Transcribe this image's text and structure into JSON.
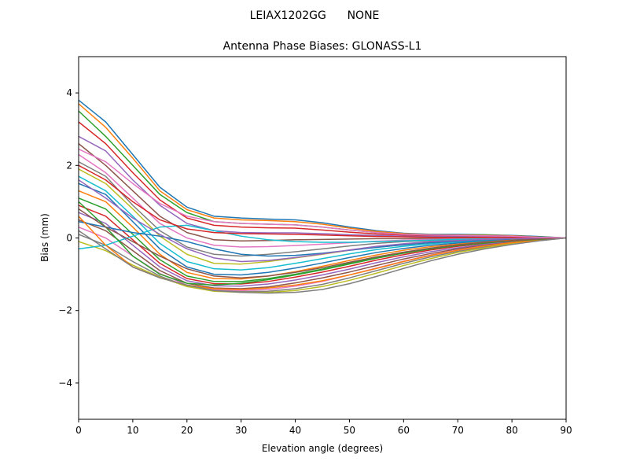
{
  "suptitle": "LEIAX1202GG      NONE",
  "chart_data": {
    "type": "line",
    "title": "Antenna Phase Biases: GLONASS-L1",
    "xlabel": "Elevation angle (degrees)",
    "ylabel": "Bias (mm)",
    "xlim": [
      0,
      90
    ],
    "ylim": [
      -5,
      5
    ],
    "xticks": [
      0,
      10,
      20,
      30,
      40,
      50,
      60,
      70,
      80,
      90
    ],
    "yticks": [
      -4,
      -2,
      0,
      2,
      4
    ],
    "ytick_labels": [
      "−4",
      "−2",
      "0",
      "2",
      "4"
    ],
    "grid": false,
    "legend": "none",
    "colors": [
      "#1f77b4",
      "#ff7f0e",
      "#2ca02c",
      "#d62728",
      "#9467bd",
      "#8c564b",
      "#e377c2",
      "#7f7f7f",
      "#bcbd22",
      "#17becf"
    ],
    "x": [
      0,
      5,
      10,
      15,
      20,
      25,
      30,
      35,
      40,
      45,
      50,
      55,
      60,
      65,
      70,
      75,
      80,
      85,
      90
    ],
    "series": [
      {
        "values": [
          3.8,
          3.2,
          2.3,
          1.4,
          0.85,
          0.6,
          0.55,
          0.52,
          0.5,
          0.42,
          0.3,
          0.2,
          0.13,
          0.1,
          0.1,
          0.09,
          0.07,
          0.04,
          0.0
        ]
      },
      {
        "values": [
          3.7,
          3.05,
          2.2,
          1.3,
          0.78,
          0.55,
          0.5,
          0.48,
          0.45,
          0.38,
          0.27,
          0.18,
          0.12,
          0.09,
          0.08,
          0.08,
          0.06,
          0.03,
          0.0
        ]
      },
      {
        "values": [
          3.5,
          2.8,
          2.0,
          1.2,
          0.7,
          0.45,
          0.4,
          0.38,
          0.36,
          0.3,
          0.22,
          0.15,
          0.1,
          0.08,
          0.07,
          0.07,
          0.05,
          0.03,
          0.0
        ]
      },
      {
        "values": [
          3.2,
          2.6,
          1.8,
          1.05,
          0.55,
          0.35,
          0.3,
          0.28,
          0.27,
          0.22,
          0.16,
          0.11,
          0.08,
          0.06,
          0.06,
          0.06,
          0.05,
          0.02,
          0.0
        ]
      },
      {
        "values": [
          2.8,
          2.4,
          1.6,
          0.9,
          0.4,
          0.2,
          0.15,
          0.14,
          0.14,
          0.12,
          0.09,
          0.07,
          0.05,
          0.04,
          0.04,
          0.04,
          0.04,
          0.02,
          0.0
        ]
      },
      {
        "values": [
          2.6,
          2.0,
          1.3,
          0.6,
          0.15,
          -0.05,
          -0.08,
          -0.07,
          -0.05,
          -0.04,
          -0.03,
          -0.02,
          -0.02,
          -0.01,
          -0.01,
          0.0,
          0.01,
          0.01,
          0.0
        ]
      },
      {
        "values": [
          2.3,
          1.8,
          1.1,
          0.4,
          0.0,
          -0.2,
          -0.25,
          -0.24,
          -0.21,
          -0.17,
          -0.13,
          -0.09,
          -0.06,
          -0.04,
          -0.03,
          -0.02,
          -0.01,
          0.0,
          0.0
        ]
      },
      {
        "values": [
          2.1,
          1.7,
          0.9,
          0.2,
          -0.25,
          -0.45,
          -0.5,
          -0.45,
          -0.38,
          -0.3,
          -0.22,
          -0.15,
          -0.1,
          -0.07,
          -0.05,
          -0.03,
          -0.02,
          -0.01,
          0.0
        ]
      },
      {
        "values": [
          1.9,
          1.5,
          0.8,
          0.05,
          -0.45,
          -0.7,
          -0.72,
          -0.65,
          -0.55,
          -0.45,
          -0.34,
          -0.24,
          -0.17,
          -0.12,
          -0.08,
          -0.05,
          -0.03,
          -0.01,
          0.0
        ]
      },
      {
        "values": [
          1.7,
          1.3,
          0.6,
          -0.15,
          -0.65,
          -0.85,
          -0.88,
          -0.82,
          -0.7,
          -0.57,
          -0.44,
          -0.32,
          -0.23,
          -0.16,
          -0.11,
          -0.07,
          -0.04,
          -0.02,
          0.0
        ]
      },
      {
        "values": [
          1.5,
          1.2,
          0.45,
          -0.3,
          -0.8,
          -1.0,
          -1.02,
          -0.95,
          -0.83,
          -0.69,
          -0.54,
          -0.4,
          -0.29,
          -0.2,
          -0.14,
          -0.09,
          -0.05,
          -0.02,
          0.0
        ]
      },
      {
        "values": [
          1.3,
          1.0,
          0.3,
          -0.45,
          -0.95,
          -1.12,
          -1.13,
          -1.05,
          -0.93,
          -0.78,
          -0.62,
          -0.47,
          -0.34,
          -0.24,
          -0.17,
          -0.11,
          -0.06,
          -0.03,
          0.0
        ]
      },
      {
        "values": [
          1.1,
          0.8,
          0.1,
          -0.6,
          -1.05,
          -1.2,
          -1.2,
          -1.12,
          -1.0,
          -0.86,
          -0.7,
          -0.54,
          -0.4,
          -0.29,
          -0.2,
          -0.13,
          -0.08,
          -0.04,
          0.0
        ]
      },
      {
        "values": [
          0.9,
          0.6,
          -0.05,
          -0.7,
          -1.12,
          -1.26,
          -1.27,
          -1.2,
          -1.08,
          -0.94,
          -0.78,
          -0.61,
          -0.46,
          -0.33,
          -0.23,
          -0.15,
          -0.09,
          -0.04,
          0.0
        ]
      },
      {
        "values": [
          0.7,
          0.4,
          -0.2,
          -0.8,
          -1.18,
          -1.32,
          -1.33,
          -1.27,
          -1.16,
          -1.02,
          -0.86,
          -0.68,
          -0.52,
          -0.38,
          -0.27,
          -0.18,
          -0.1,
          -0.05,
          0.0
        ]
      },
      {
        "values": [
          0.5,
          0.2,
          -0.35,
          -0.9,
          -1.25,
          -1.38,
          -1.4,
          -1.35,
          -1.24,
          -1.1,
          -0.94,
          -0.76,
          -0.58,
          -0.43,
          -0.3,
          -0.2,
          -0.12,
          -0.05,
          0.0
        ]
      },
      {
        "values": [
          0.3,
          0.0,
          -0.5,
          -0.98,
          -1.3,
          -1.42,
          -1.45,
          -1.42,
          -1.33,
          -1.2,
          -1.02,
          -0.83,
          -0.64,
          -0.47,
          -0.33,
          -0.22,
          -0.13,
          -0.06,
          0.0
        ]
      },
      {
        "values": [
          0.1,
          -0.2,
          -0.65,
          -1.05,
          -1.33,
          -1.45,
          -1.48,
          -1.47,
          -1.4,
          -1.28,
          -1.1,
          -0.9,
          -0.7,
          -0.52,
          -0.37,
          -0.25,
          -0.15,
          -0.07,
          0.0
        ]
      },
      {
        "values": [
          -0.1,
          -0.35,
          -0.75,
          -1.08,
          -1.34,
          -1.47,
          -1.5,
          -1.5,
          -1.45,
          -1.34,
          -1.17,
          -0.97,
          -0.76,
          -0.57,
          -0.4,
          -0.27,
          -0.16,
          -0.07,
          0.0
        ]
      },
      {
        "values": [
          -0.3,
          -0.2,
          0.05,
          0.3,
          0.35,
          0.2,
          0.05,
          -0.05,
          -0.1,
          -0.12,
          -0.12,
          -0.1,
          -0.08,
          -0.06,
          -0.04,
          -0.03,
          -0.02,
          -0.01,
          0.0
        ]
      },
      {
        "values": [
          0.45,
          0.3,
          0.15,
          0.05,
          -0.1,
          -0.3,
          -0.45,
          -0.5,
          -0.48,
          -0.42,
          -0.34,
          -0.26,
          -0.19,
          -0.13,
          -0.09,
          -0.05,
          -0.03,
          -0.01,
          0.0
        ]
      },
      {
        "values": [
          0.6,
          -0.2,
          -0.8,
          -1.1,
          -1.3,
          -1.4,
          -1.42,
          -1.38,
          -1.3,
          -1.18,
          -1.02,
          -0.84,
          -0.65,
          -0.48,
          -0.34,
          -0.22,
          -0.13,
          -0.06,
          0.0
        ]
      },
      {
        "values": [
          1.0,
          0.3,
          -0.5,
          -1.0,
          -1.25,
          -1.3,
          -1.25,
          -1.15,
          -1.02,
          -0.88,
          -0.72,
          -0.56,
          -0.42,
          -0.3,
          -0.21,
          -0.14,
          -0.08,
          -0.04,
          0.0
        ]
      },
      {
        "values": [
          2.0,
          1.6,
          1.0,
          0.5,
          0.25,
          0.15,
          0.12,
          0.11,
          0.1,
          0.08,
          0.06,
          0.04,
          0.03,
          0.02,
          0.02,
          0.02,
          0.02,
          0.01,
          0.0
        ]
      },
      {
        "values": [
          1.6,
          1.1,
          0.55,
          0.1,
          -0.3,
          -0.55,
          -0.65,
          -0.62,
          -0.54,
          -0.44,
          -0.33,
          -0.23,
          -0.16,
          -0.1,
          -0.07,
          -0.04,
          -0.02,
          -0.01,
          0.0
        ]
      },
      {
        "values": [
          0.8,
          0.3,
          -0.1,
          -0.5,
          -0.85,
          -1.05,
          -1.1,
          -1.05,
          -0.95,
          -0.82,
          -0.67,
          -0.52,
          -0.39,
          -0.28,
          -0.19,
          -0.12,
          -0.07,
          -0.03,
          0.0
        ]
      },
      {
        "values": [
          2.45,
          2.1,
          1.5,
          0.95,
          0.6,
          0.45,
          0.4,
          0.38,
          0.36,
          0.3,
          0.22,
          0.15,
          0.1,
          0.08,
          0.07,
          0.06,
          0.05,
          0.02,
          0.0
        ]
      },
      {
        "values": [
          0.2,
          -0.3,
          -0.8,
          -1.1,
          -1.3,
          -1.45,
          -1.5,
          -1.52,
          -1.5,
          -1.42,
          -1.26,
          -1.06,
          -0.84,
          -0.63,
          -0.45,
          -0.3,
          -0.18,
          -0.08,
          0.0
        ]
      }
    ]
  }
}
